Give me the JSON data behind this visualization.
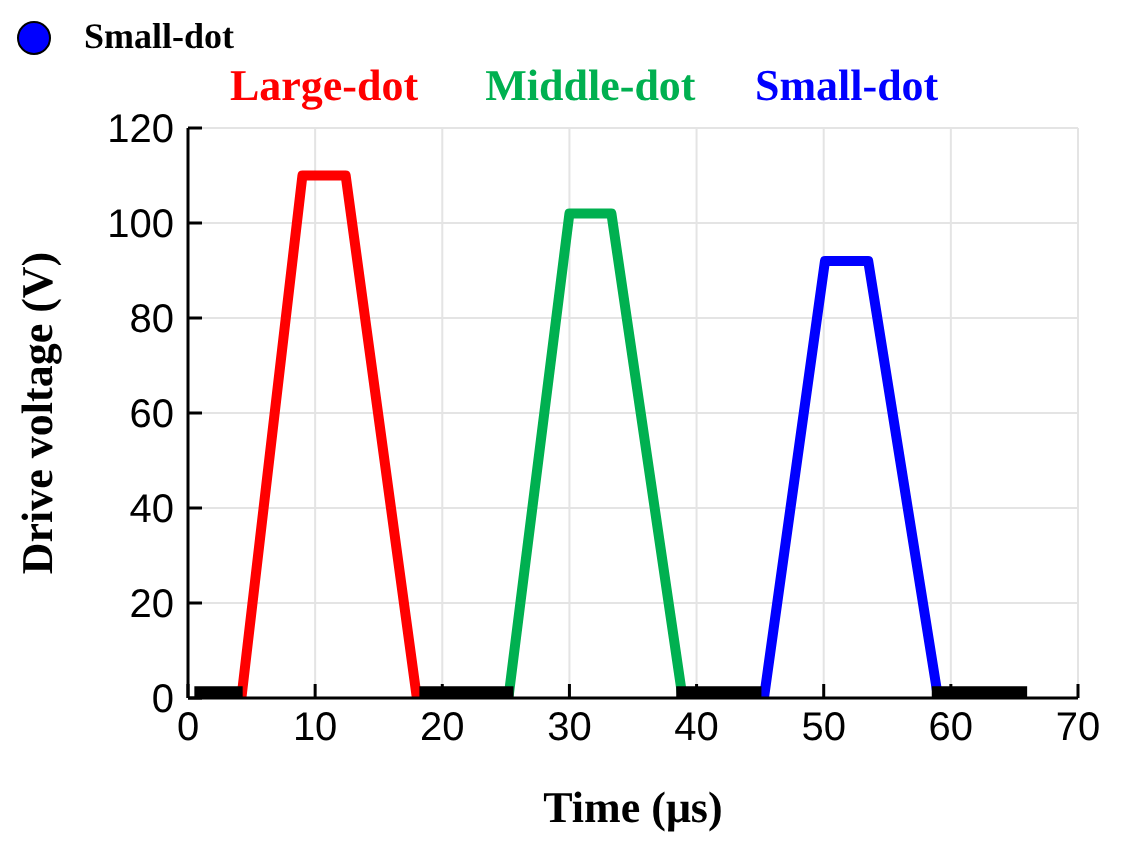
{
  "chart_data": {
    "type": "line",
    "annotations": [
      "Small-dot"
    ],
    "xlabel": "Time (μs)",
    "ylabel": "Drive voltage (V)",
    "xlim": [
      0,
      70
    ],
    "xticks": [
      0,
      10,
      20,
      30,
      40,
      50,
      60,
      70
    ],
    "ylim": [
      0,
      120
    ],
    "yticks": [
      0,
      20,
      40,
      60,
      80,
      100,
      120
    ],
    "grid": true,
    "legend": "top",
    "line_style": "solid",
    "marker": "none",
    "series": [
      {
        "name": "Large-dot",
        "color": "#ff0000",
        "x": [
          4.2,
          9,
          12.4,
          18
        ],
        "values": [
          0,
          110,
          110,
          0
        ]
      },
      {
        "name": "Middle-dot",
        "color": "#00b050",
        "x": [
          25.2,
          30,
          33.3,
          38.9
        ],
        "values": [
          0,
          102,
          102,
          0
        ]
      },
      {
        "name": "Small-dot",
        "color": "#0000ff",
        "x": [
          45.3,
          50.1,
          53.5,
          59
        ],
        "values": [
          0,
          92,
          92,
          0
        ]
      },
      {
        "color": "#000000",
        "x": [
          0.5,
          4.3,
          11,
          18.2,
          25.6,
          32,
          38.4,
          45.1,
          52,
          58.5,
          66
        ],
        "values": [
          1,
          1,
          null,
          1,
          1,
          null,
          1,
          1,
          null,
          1,
          1
        ]
      }
    ]
  }
}
